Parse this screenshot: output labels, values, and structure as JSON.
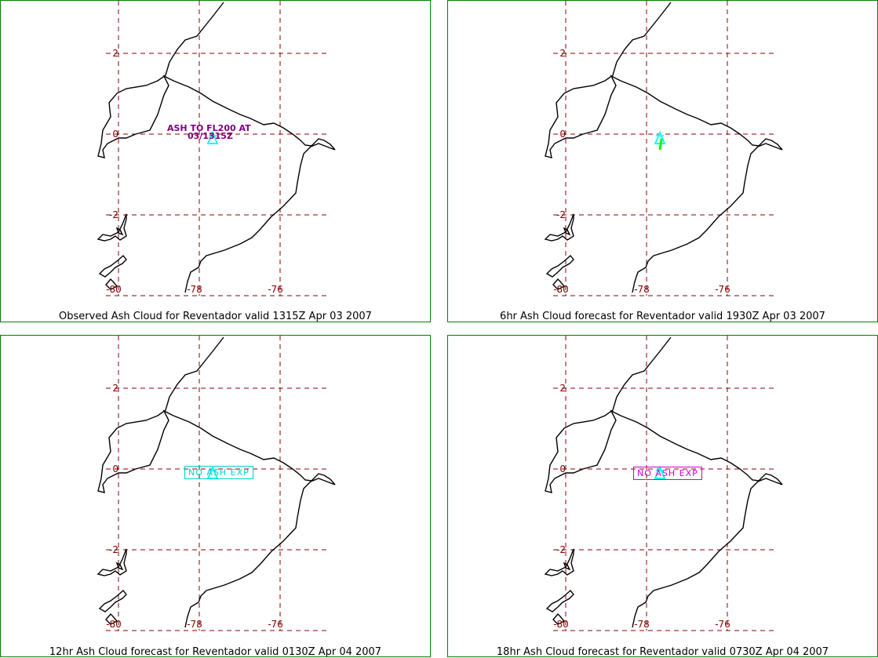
{
  "colors": {
    "panel_border": "#008000",
    "grid": "#8b0000",
    "coast": "#000000",
    "volcano": "#00ffff",
    "annotation": "#800080",
    "forecast_arrow": "#00ff00",
    "no_ash_12hr": "#00d0d0",
    "no_ash_18hr": "#d000d0"
  },
  "volcano_icon": "volcano-triangle-icon",
  "panels": [
    {
      "caption": "Observed Ash Cloud for Reventador valid 1315Z Apr 03 2007",
      "annotation": [
        "ASH TO FL200 AT",
        "03/1315Z"
      ],
      "status": ""
    },
    {
      "caption": "6hr Ash Cloud forecast for Reventador valid 1930Z Apr 03 2007",
      "annotation": [],
      "status": ""
    },
    {
      "caption": "12hr Ash Cloud forecast for Reventador valid 0130Z Apr 04 2007",
      "annotation": [],
      "status": "NO ASH EXP"
    },
    {
      "caption": "18hr Ash Cloud forecast for Reventador valid 0730Z Apr 04 2007",
      "annotation": [],
      "status": "NO ASH EXP"
    }
  ],
  "axis": {
    "lat_labels": [
      "2",
      "0",
      "-2"
    ],
    "lon_labels": [
      "-80",
      "-78",
      "-76"
    ]
  }
}
